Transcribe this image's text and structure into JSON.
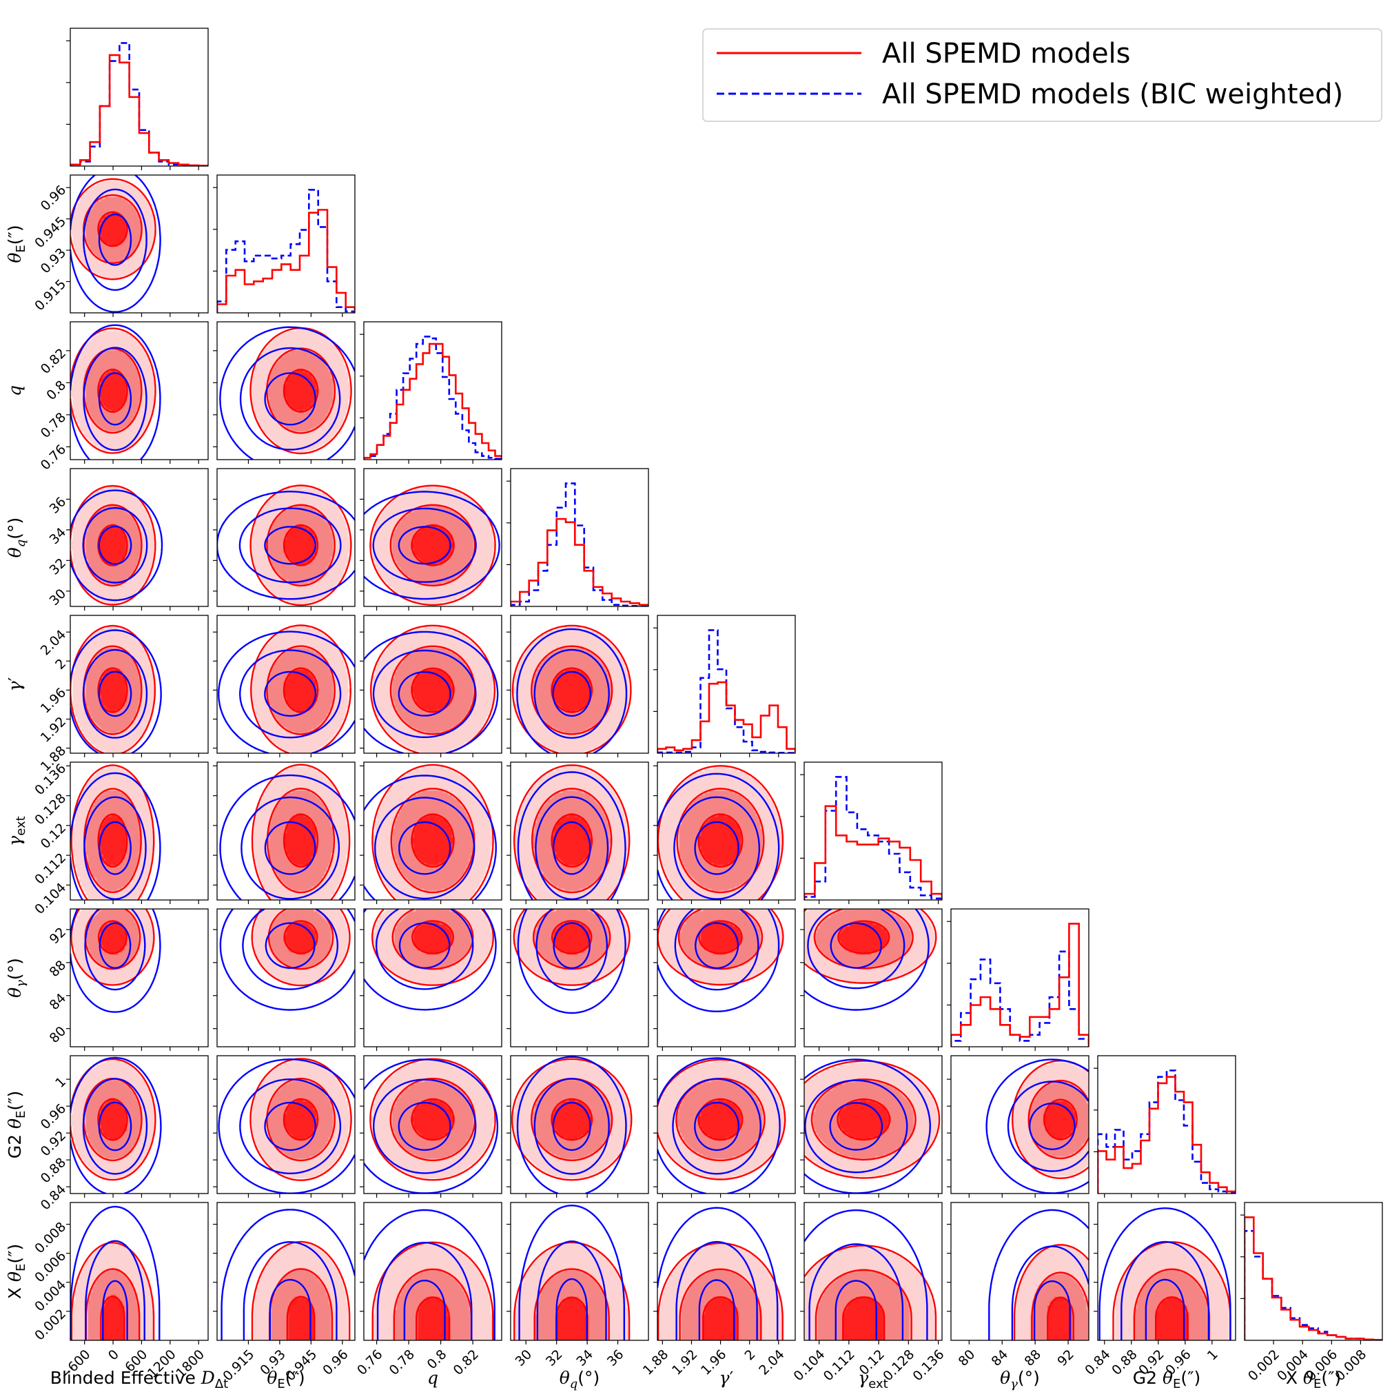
{
  "chart_data": {
    "type": "corner",
    "legend": {
      "placement": "top-right",
      "entries": [
        {
          "label": "All SPEMD models",
          "color": "#ff0000",
          "style": "solid"
        },
        {
          "label": "All SPEMD models (BIC weighted)",
          "color": "#0000ff",
          "style": "dashed"
        }
      ]
    },
    "parameters": [
      {
        "label": "Blinded Effective D_Δt",
        "range": [
          -900,
          2000
        ],
        "ticks": [
          -600,
          0,
          600,
          1200,
          1800
        ]
      },
      {
        "label": "θ_E('')",
        "range": [
          0.9,
          0.966
        ],
        "ticks": [
          0.915,
          0.93,
          0.945,
          0.96
        ]
      },
      {
        "label": "q",
        "range": [
          0.752,
          0.838
        ],
        "ticks": [
          0.76,
          0.78,
          0.8,
          0.82
        ]
      },
      {
        "label": "θ_q(°)",
        "range": [
          29.0,
          38.0
        ],
        "ticks": [
          30,
          32,
          34,
          36
        ]
      },
      {
        "label": "γ'",
        "range": [
          1.873,
          2.063
        ],
        "ticks": [
          1.88,
          1.92,
          1.96,
          2.0,
          2.04
        ]
      },
      {
        "label": "γ_ext",
        "range": [
          0.1,
          0.137
        ],
        "ticks": [
          0.104,
          0.112,
          0.12,
          0.128,
          0.136
        ]
      },
      {
        "label": "θ_γ(°)",
        "range": [
          77.8,
          94.5
        ],
        "ticks": [
          80,
          84,
          88,
          92
        ]
      },
      {
        "label": "G2 θ_E('')",
        "range": [
          0.83,
          1.035
        ],
        "ticks": [
          0.84,
          0.88,
          0.92,
          0.96,
          1.0
        ]
      },
      {
        "label": "X θ_E('')",
        "range": [
          0,
          0.0095
        ],
        "ticks": [
          0.002,
          0.004,
          0.006,
          0.008
        ]
      }
    ],
    "series": [
      {
        "name": "All SPEMD models",
        "modes": [
          [
            {
              "w": 1.0,
              "m": [
                0,
                0.94,
                0.795,
                33,
                1.96,
                0.116,
                91,
                0.94,
                0.0016
              ],
              "s": [
                300,
                0.008,
                0.013,
                1.3,
                0.03,
                0.007,
                2.0,
                0.03,
                0.0018
              ]
            }
          ],
          [
            {
              "w": 0.65,
              "m": [
                0,
                0.943,
                0.795,
                33,
                1.96,
                0.116,
                91
              ],
              "s": [
                300,
                0.008,
                0.013,
                1.3,
                0.03,
                0.007,
                1.8
              ]
            },
            {
              "w": 0.35,
              "m": [
                0,
                0.912,
                0.795,
                33,
                1.96,
                0.116,
                82.5
              ],
              "s": [
                280,
                0.005,
                0.013,
                1.3,
                0.03,
                0.007,
                1.3
              ]
            }
          ],
          [
            {
              "w": 0.65,
              "m": [
                0,
                0.945,
                0.8,
                33,
                1.98,
                0.12,
                91,
                0.945
              ],
              "s": [
                300,
                0.008,
                0.013,
                1.3,
                0.03,
                0.007,
                1.8,
                0.025
              ]
            },
            {
              "w": 0.35,
              "m": [
                0,
                0.912,
                0.785,
                32.5,
                1.94,
                0.11,
                82.5,
                0.87
              ],
              "s": [
                280,
                0.005,
                0.012,
                1.3,
                0.03,
                0.006,
                1.3,
                0.015
              ]
            }
          ]
        ],
        "hist_counts": [
          [
            1,
            4,
            16,
            40,
            74,
            69,
            46,
            22,
            9,
            4,
            2,
            1,
            0.5,
            0.3
          ],
          [
            3,
            13,
            15,
            10,
            11,
            12,
            15,
            17,
            15,
            20,
            35,
            36,
            16,
            7,
            2
          ],
          [
            1,
            3,
            8,
            13,
            20,
            30,
            38,
            44,
            52,
            58,
            63,
            63,
            56,
            46,
            36,
            28,
            20,
            14,
            9,
            5,
            2
          ],
          [
            3,
            9,
            16,
            27,
            47,
            54,
            52,
            38,
            22,
            12,
            8,
            5,
            3,
            2,
            1
          ],
          [
            3,
            4,
            2,
            3,
            9,
            22,
            48,
            49,
            33,
            23,
            20,
            11,
            26,
            33,
            18,
            3
          ],
          [
            4,
            24,
            61,
            42,
            38,
            36,
            36,
            40,
            38,
            34,
            26,
            12,
            4
          ],
          [
            6,
            11,
            21,
            25,
            19,
            11,
            6,
            5,
            15,
            15,
            19,
            35,
            62,
            6
          ],
          [
            20,
            16,
            22,
            12,
            14,
            25,
            40,
            52,
            55,
            48,
            43,
            23,
            10,
            5,
            3,
            1
          ],
          [
            72,
            51,
            36,
            25,
            18,
            12,
            8,
            6,
            4,
            3,
            2,
            1,
            1,
            0.5,
            0.3
          ]
        ]
      },
      {
        "name": "All SPEMD models (BIC weighted)",
        "modes": [
          [
            {
              "w": 1.0,
              "m": [
                50,
                0.935,
                0.79,
                33,
                1.955,
                0.114,
                90,
                0.93,
                0.0022
              ],
              "s": [
                330,
                0.012,
                0.016,
                1.2,
                0.03,
                0.007,
                2.8,
                0.035,
                0.0025
              ]
            }
          ],
          [
            {
              "w": 0.62,
              "m": [
                50,
                0.942,
                0.79,
                33,
                1.955,
                0.114,
                91
              ],
              "s": [
                330,
                0.01,
                0.016,
                1.2,
                0.03,
                0.007,
                2.0
              ]
            },
            {
              "w": 0.38,
              "m": [
                50,
                0.915,
                0.79,
                33,
                1.955,
                0.114,
                83.5
              ],
              "s": [
                330,
                0.007,
                0.016,
                1.2,
                0.03,
                0.007,
                1.6
              ]
            }
          ],
          [
            {
              "w": 0.62,
              "m": [
                50,
                0.944,
                0.79,
                33,
                1.96,
                0.118,
                91,
                0.935
              ],
              "s": [
                330,
                0.01,
                0.016,
                1.2,
                0.03,
                0.007,
                2.0,
                0.03
              ]
            },
            {
              "w": 0.38,
              "m": [
                50,
                0.915,
                0.78,
                32.5,
                1.945,
                0.111,
                83.5,
                0.875
              ],
              "s": [
                330,
                0.007,
                0.016,
                1.2,
                0.03,
                0.006,
                1.6,
                0.018
              ]
            }
          ]
        ],
        "hist_counts": [
          [
            1,
            3,
            13,
            40,
            70,
            82,
            51,
            24,
            9,
            3,
            1,
            0.5,
            0.3,
            0.2
          ],
          [
            4,
            22,
            25,
            18,
            20,
            20,
            19,
            20,
            24,
            29,
            43,
            30,
            11,
            2,
            0.5
          ],
          [
            1,
            2,
            8,
            14,
            25,
            38,
            47,
            55,
            63,
            67,
            66,
            58,
            45,
            33,
            25,
            16,
            9,
            4,
            2,
            1,
            0.5
          ],
          [
            1,
            3,
            10,
            22,
            38,
            61,
            76,
            50,
            24,
            10,
            4,
            1,
            0.5,
            0.3,
            0.2
          ],
          [
            0.5,
            0.5,
            0.5,
            1,
            4,
            52,
            85,
            58,
            31,
            18,
            8,
            2,
            1,
            0.5,
            0.3,
            0.2
          ],
          [
            2,
            12,
            58,
            80,
            57,
            46,
            42,
            38,
            30,
            18,
            8,
            3,
            1
          ],
          [
            3,
            17,
            34,
            44,
            32,
            19,
            6,
            3,
            6,
            12,
            25,
            48,
            19,
            4
          ],
          [
            28,
            22,
            30,
            16,
            20,
            28,
            43,
            55,
            58,
            44,
            32,
            15,
            5,
            2,
            1,
            0.5
          ],
          [
            64,
            49,
            36,
            26,
            19,
            13,
            9,
            7,
            5,
            3,
            2,
            1,
            1,
            0.5,
            0.3
          ]
        ]
      }
    ],
    "credible_levels": [
      0.393,
      0.865,
      0.989
    ],
    "fill_colors": [
      "#fdd2d2",
      "#f58585",
      "#ff2020"
    ]
  }
}
